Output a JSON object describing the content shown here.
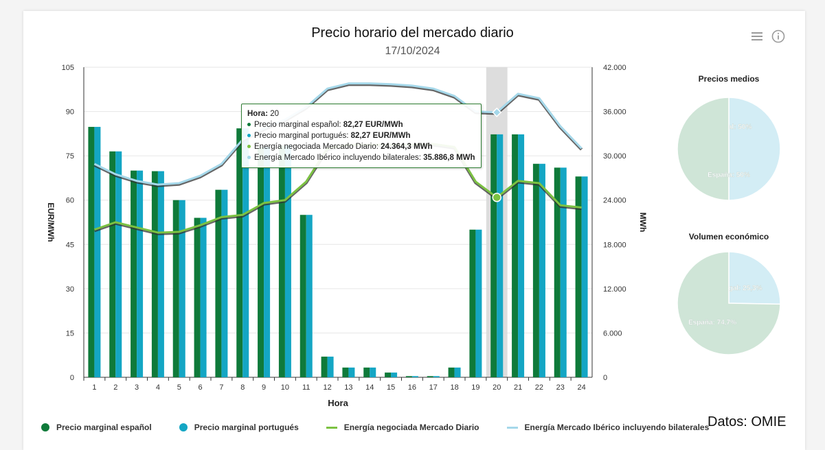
{
  "header": {
    "title": "Precio horario del mercado diario",
    "subtitle": "17/10/2024"
  },
  "icons": {
    "menu": "menu-icon",
    "info": "info-icon"
  },
  "source_note": "Datos: OMIE",
  "colors": {
    "es_price": "#0f7a3a",
    "pt_price": "#14a6c4",
    "energy_md": "#7cc242",
    "energy_mibel": "#a5d8ea",
    "highlight": "#d9d9d9",
    "pie_pt": "#d3edf5",
    "pie_es": "#cfe5d7"
  },
  "legend": [
    {
      "label": "Precio marginal español",
      "color": "#0f7a3a",
      "kind": "dot"
    },
    {
      "label": "Precio marginal portugués",
      "color": "#14a6c4",
      "kind": "dot"
    },
    {
      "label": "Energía negociada Mercado Diario",
      "color": "#7cc242",
      "kind": "line"
    },
    {
      "label": "Energía Mercado Ibérico incluyendo bilaterales",
      "color": "#a5d8ea",
      "kind": "line"
    }
  ],
  "tooltip": {
    "hour_label": "Hora:",
    "hour_value": "20",
    "rows": [
      {
        "label": "Precio marginal español:",
        "value": "82,27 EUR/MWh",
        "color": "#0f7a3a"
      },
      {
        "label": "Precio marginal portugués:",
        "value": "82,27 EUR/MWh",
        "color": "#14a6c4"
      },
      {
        "label": "Energía negociada Mercado Diario:",
        "value": "24.364,3 MWh",
        "color": "#7cc242"
      },
      {
        "label": "Energía Mercado Ibérico incluyendo bilaterales:",
        "value": "35.886,8 MWh",
        "color": "#a5d8ea"
      }
    ]
  },
  "chart_data": [
    {
      "type": "bar",
      "title": "Precio horario del mercado diario",
      "subtitle": "17/10/2024",
      "xlabel": "Hora",
      "ylabel": "EUR/MWh",
      "y2label": "MWh",
      "categories": [
        "1",
        "2",
        "3",
        "4",
        "5",
        "6",
        "7",
        "8",
        "9",
        "10",
        "11",
        "12",
        "13",
        "14",
        "15",
        "16",
        "17",
        "18",
        "19",
        "20",
        "21",
        "22",
        "23",
        "24"
      ],
      "ylim": [
        0,
        105
      ],
      "y2lim": [
        0,
        42000
      ],
      "yticks": [
        "0",
        "15",
        "30",
        "45",
        "60",
        "75",
        "90",
        "105"
      ],
      "y2ticks": [
        "0",
        "6.000",
        "12.000",
        "18.000",
        "24.000",
        "30.000",
        "36.000",
        "42.000"
      ],
      "highlighted_category": "20",
      "grid": true,
      "legend_position": "bottom",
      "series": [
        {
          "name": "Precio marginal español",
          "axis": "left",
          "type": "bar",
          "values": [
            84.8,
            76.5,
            70.0,
            69.8,
            60.0,
            54.0,
            63.5,
            84.3,
            78.0,
            78.5,
            55.0,
            7.0,
            3.3,
            3.3,
            1.6,
            0.4,
            0.4,
            3.3,
            50.0,
            82.27,
            82.27,
            72.3,
            71.0,
            68.0
          ]
        },
        {
          "name": "Precio marginal portugués",
          "axis": "left",
          "type": "bar",
          "values": [
            84.8,
            76.5,
            70.0,
            69.8,
            60.0,
            54.0,
            63.5,
            84.3,
            78.0,
            78.5,
            55.0,
            7.0,
            3.3,
            3.3,
            1.6,
            0.4,
            0.4,
            3.3,
            50.0,
            82.27,
            82.27,
            72.3,
            71.0,
            68.0
          ]
        },
        {
          "name": "Energía negociada Mercado Diario",
          "axis": "right",
          "type": "line",
          "values": [
            20000,
            21000,
            20300,
            19600,
            19700,
            20600,
            21700,
            22000,
            23600,
            24000,
            26500,
            31000,
            31500,
            31500,
            31500,
            31500,
            31600,
            31200,
            26500,
            24364.3,
            26600,
            26300,
            23300,
            23000
          ]
        },
        {
          "name": "Energía Mercado Ibérico incluyendo bilaterales",
          "axis": "right",
          "type": "line",
          "values": [
            28900,
            27500,
            26600,
            26100,
            26300,
            27300,
            28900,
            32200,
            33700,
            34900,
            36600,
            39100,
            39800,
            39800,
            39700,
            39500,
            39100,
            38100,
            36000,
            35886.8,
            38400,
            37800,
            34000,
            31000
          ]
        }
      ]
    },
    {
      "type": "pie",
      "title": "Precios medios",
      "series": [
        {
          "name": "Portugal",
          "label": "Portugal: 50%",
          "value": 50
        },
        {
          "name": "España",
          "label": "España: 50%",
          "value": 50
        }
      ]
    },
    {
      "type": "pie",
      "title": "Volumen económico",
      "series": [
        {
          "name": "Portugal",
          "label": "Portugal: 25,3%",
          "value": 25.3
        },
        {
          "name": "España",
          "label": "España: 74,7%",
          "value": 74.7
        }
      ]
    }
  ]
}
